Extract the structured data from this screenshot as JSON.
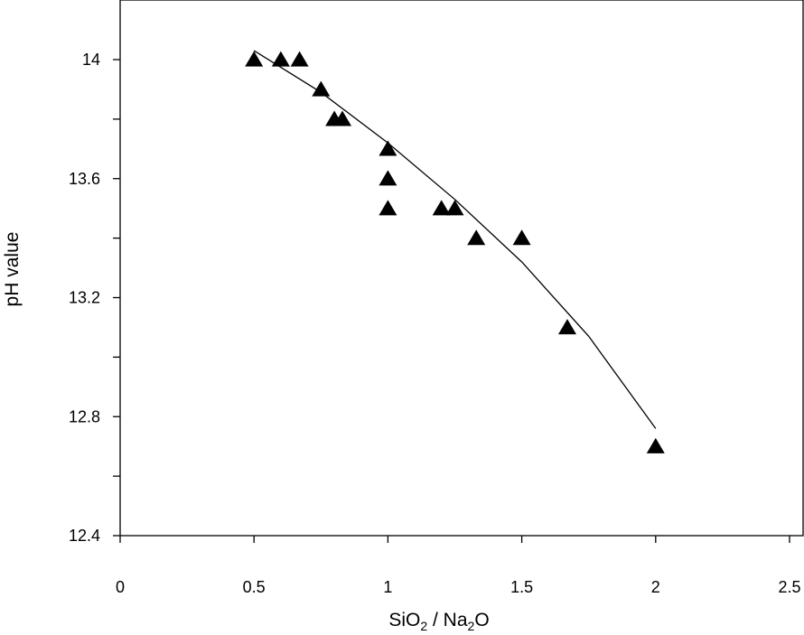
{
  "chart_data": {
    "type": "scatter",
    "xlabel": "SiO2 / Na2O",
    "xlabel_parts": {
      "a": "SiO",
      "a_sub": "2",
      "sep": " / Na",
      "b_sub": "2",
      "b": "O"
    },
    "ylabel": "pH value",
    "xlim": [
      0,
      2.5
    ],
    "ylim": [
      12.4,
      14.2
    ],
    "x_ticks": [
      0,
      0.5,
      1,
      1.5,
      2,
      2.5
    ],
    "x_tick_labels": [
      "0",
      "0.5",
      "1",
      "1.5",
      "2",
      "2.5"
    ],
    "y_ticks": [
      12.4,
      12.6,
      12.8,
      13.0,
      13.2,
      13.4,
      13.6,
      13.8,
      14.0
    ],
    "y_tick_labels": [
      "12.4",
      "",
      "12.8",
      "",
      "13.2",
      "",
      "13.6",
      "",
      "14"
    ],
    "grid": false,
    "legend": "none",
    "marker": "filled-triangle",
    "marker_color": "#000000",
    "series": [
      {
        "points": [
          {
            "x": 0.5,
            "y": 14.0
          },
          {
            "x": 0.6,
            "y": 14.0
          },
          {
            "x": 0.67,
            "y": 14.0
          },
          {
            "x": 0.75,
            "y": 13.9
          },
          {
            "x": 0.8,
            "y": 13.8
          },
          {
            "x": 0.83,
            "y": 13.8
          },
          {
            "x": 1.0,
            "y": 13.7
          },
          {
            "x": 1.0,
            "y": 13.6
          },
          {
            "x": 1.0,
            "y": 13.5
          },
          {
            "x": 1.2,
            "y": 13.5
          },
          {
            "x": 1.25,
            "y": 13.5
          },
          {
            "x": 1.33,
            "y": 13.4
          },
          {
            "x": 1.5,
            "y": 13.4
          },
          {
            "x": 1.67,
            "y": 13.1
          },
          {
            "x": 2.0,
            "y": 12.7
          }
        ]
      }
    ],
    "fit_line": {
      "type": "line",
      "color": "#000000",
      "points": [
        {
          "x": 0.5,
          "y": 14.03
        },
        {
          "x": 0.75,
          "y": 13.89
        },
        {
          "x": 1.0,
          "y": 13.72
        },
        {
          "x": 1.25,
          "y": 13.53
        },
        {
          "x": 1.5,
          "y": 13.32
        },
        {
          "x": 1.75,
          "y": 13.07
        },
        {
          "x": 2.0,
          "y": 12.76
        }
      ]
    }
  }
}
